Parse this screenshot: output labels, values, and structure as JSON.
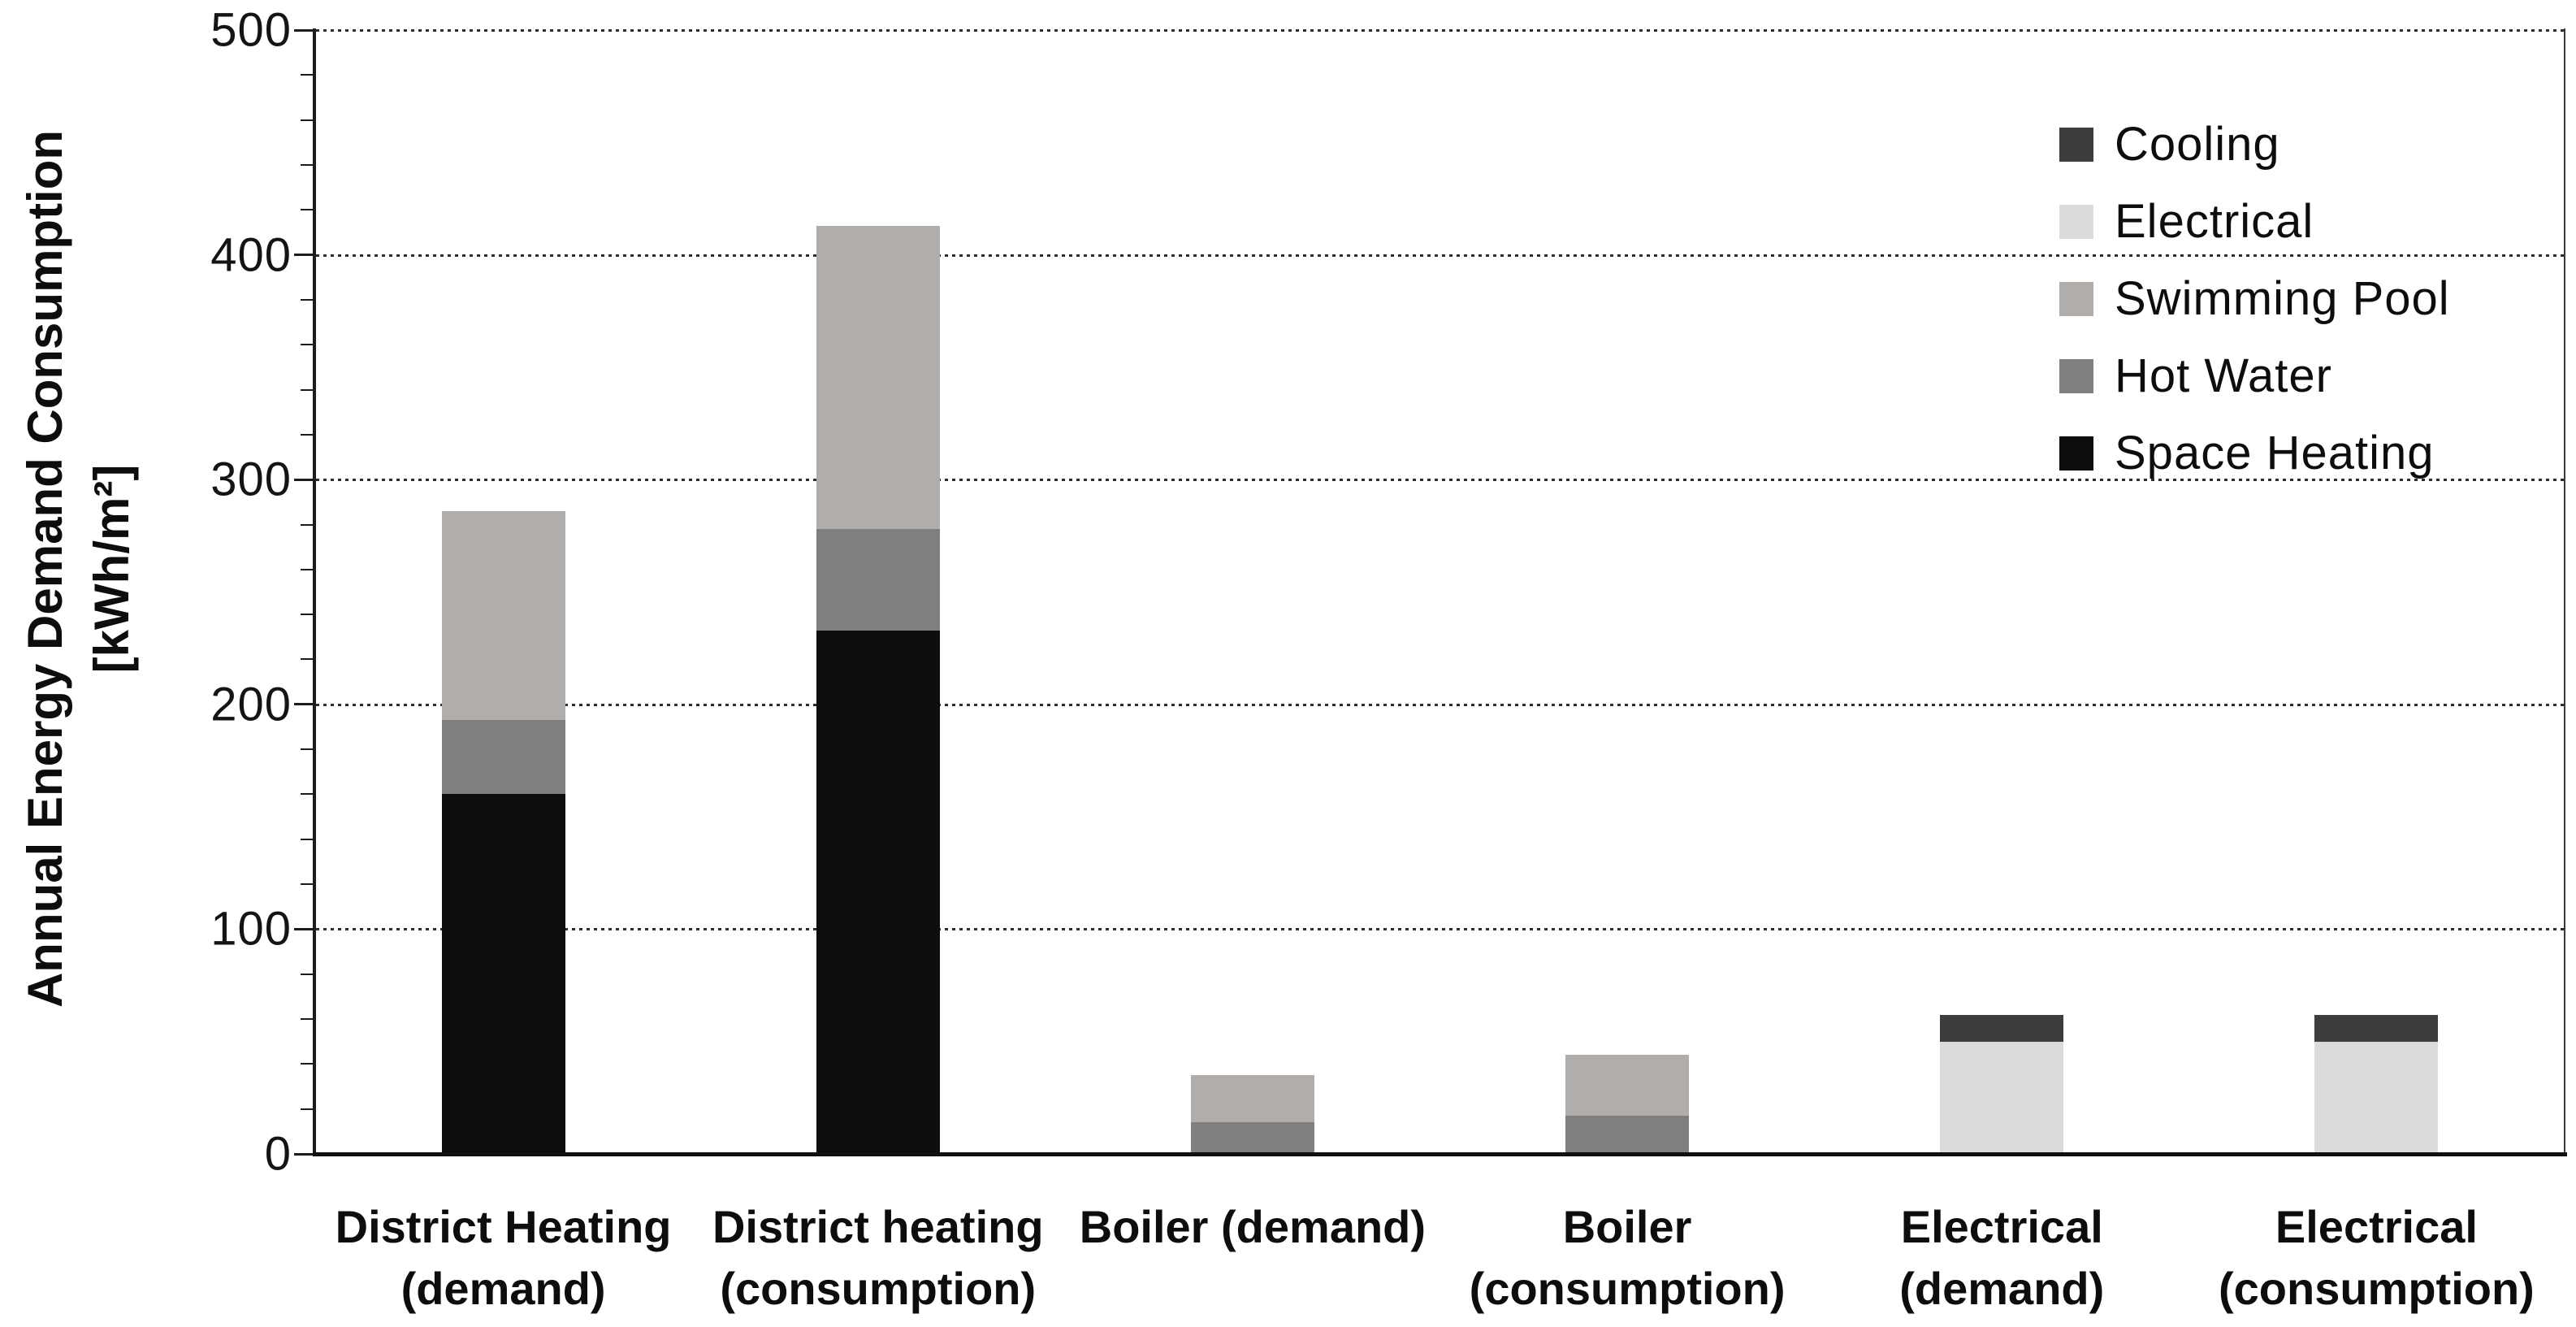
{
  "chart_data": {
    "type": "bar",
    "stacked": true,
    "title": "",
    "ylabel_line1": "Annual Energy Demand Consumption",
    "ylabel_line2": "[kWh/m²]",
    "ylim": [
      0,
      500
    ],
    "ytick_step": 100,
    "yminor_step": 20,
    "yticks": [
      "0",
      "100",
      "200",
      "300",
      "400",
      "500"
    ],
    "grid": "horizontal dotted at each major tick",
    "legend_position": "top-right inside plot, no frame",
    "categories": [
      {
        "line1": "District Heating",
        "line2": "(demand)"
      },
      {
        "line1": "District heating",
        "line2": "(consumption)"
      },
      {
        "line1": "Boiler (demand)",
        "line2": ""
      },
      {
        "line1": "Boiler",
        "line2": "(consumption)"
      },
      {
        "line1": "Electrical",
        "line2": "(demand)"
      },
      {
        "line1": "Electrical",
        "line2": "(consumption)"
      }
    ],
    "series": [
      {
        "name": "Space Heating",
        "color": "#0d0d0d",
        "values": [
          160,
          233,
          0,
          0,
          0,
          0
        ]
      },
      {
        "name": "Hot Water",
        "color": "#7f7f7f",
        "values": [
          33,
          45,
          14,
          17,
          0,
          0
        ]
      },
      {
        "name": "Swimming Pool",
        "color": "#b0adaa",
        "values": [
          93,
          135,
          21,
          27,
          0,
          0
        ]
      },
      {
        "name": "Electrical",
        "color": "#dbdbdb",
        "values": [
          0,
          0,
          0,
          0,
          50,
          50
        ]
      },
      {
        "name": "Cooling",
        "color": "#3d3d3d",
        "values": [
          0,
          0,
          0,
          0,
          12,
          12
        ]
      }
    ],
    "stack_totals": [
      286,
      413,
      35,
      44,
      62,
      62
    ],
    "legend": [
      {
        "label": "Cooling",
        "color": "#3d3d3d"
      },
      {
        "label": "Electrical",
        "color": "#dbdbdb"
      },
      {
        "label": "Swimming Pool",
        "color": "#b0adaa"
      },
      {
        "label": "Hot Water",
        "color": "#7f7f7f"
      },
      {
        "label": "Space Heating",
        "color": "#0d0d0d"
      }
    ]
  }
}
